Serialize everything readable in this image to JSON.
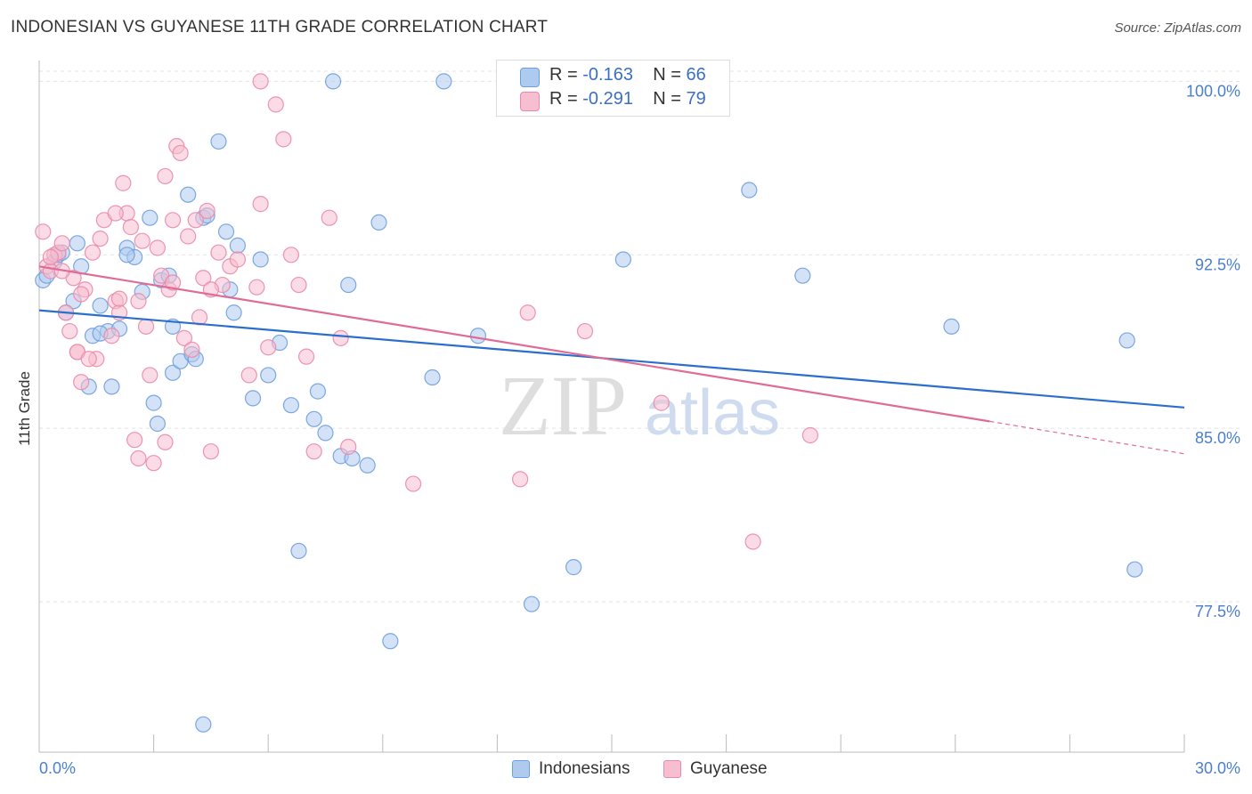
{
  "title": "INDONESIAN VS GUYANESE 11TH GRADE CORRELATION CHART",
  "source": "Source: ZipAtlas.com",
  "watermark": {
    "zip": "ZIP",
    "atlas": "atlas"
  },
  "legend_top": [
    {
      "r_label": "R =",
      "r_value": "-0.163",
      "n_label": "N =",
      "n_value": "66"
    },
    {
      "r_label": "R =",
      "r_value": "-0.291",
      "n_label": "N =",
      "n_value": "79"
    }
  ],
  "legend_bottom": [
    "Indonesians",
    "Guyanese"
  ],
  "colors": {
    "blue_fill": "#aecbef",
    "blue_stroke": "#6f9ede",
    "blue_line": "#2b6fcb",
    "pink_fill": "#f7bdd0",
    "pink_stroke": "#ea89a9",
    "pink_line": "#e06c96",
    "tick_label": "#4a7fd0",
    "grid": "#e3e3e3"
  },
  "chart_data": {
    "type": "scatter",
    "xlabel": "",
    "ylabel": "11th Grade",
    "xlim": [
      0.0,
      30.0
    ],
    "ylim": [
      71.0,
      100.9
    ],
    "x_tick_labels": [
      {
        "value": 0.0,
        "label": "0.0%"
      },
      {
        "value": 30.0,
        "label": "30.0%"
      }
    ],
    "y_tick_labels": [
      {
        "value": 100.0,
        "label": "100.0%"
      },
      {
        "value": 92.5,
        "label": "92.5%"
      },
      {
        "value": 85.0,
        "label": "85.0%"
      },
      {
        "value": 77.5,
        "label": "77.5%"
      }
    ],
    "x_minor_ticks": [
      0,
      3,
      6,
      9,
      12,
      15,
      18,
      21,
      24,
      27,
      30
    ],
    "grid": true,
    "series": [
      {
        "name": "Indonesians",
        "color": "#aecbef",
        "trend": {
          "x": [
            0.0,
            30.0
          ],
          "y": [
            90.1,
            85.9
          ]
        },
        "points": [
          [
            0.1,
            91.4
          ],
          [
            0.2,
            91.6
          ],
          [
            0.4,
            92.2
          ],
          [
            0.5,
            92.5
          ],
          [
            0.6,
            92.6
          ],
          [
            0.9,
            90.5
          ],
          [
            1.0,
            93.0
          ],
          [
            1.1,
            92.0
          ],
          [
            1.3,
            86.8
          ],
          [
            1.4,
            89.0
          ],
          [
            1.6,
            90.3
          ],
          [
            1.8,
            89.2
          ],
          [
            1.9,
            86.8
          ],
          [
            2.1,
            89.3
          ],
          [
            2.3,
            92.8
          ],
          [
            2.5,
            92.4
          ],
          [
            2.7,
            90.9
          ],
          [
            2.9,
            94.1
          ],
          [
            3.0,
            86.1
          ],
          [
            3.1,
            85.2
          ],
          [
            3.2,
            91.4
          ],
          [
            3.4,
            91.6
          ],
          [
            3.5,
            87.4
          ],
          [
            3.7,
            87.9
          ],
          [
            3.9,
            95.1
          ],
          [
            4.0,
            88.2
          ],
          [
            4.1,
            88.0
          ],
          [
            4.3,
            94.1
          ],
          [
            4.4,
            94.2
          ],
          [
            4.7,
            97.4
          ],
          [
            4.9,
            93.5
          ],
          [
            5.0,
            91.0
          ],
          [
            5.1,
            90.0
          ],
          [
            5.6,
            86.3
          ],
          [
            5.8,
            92.3
          ],
          [
            6.0,
            87.3
          ],
          [
            6.3,
            88.7
          ],
          [
            6.6,
            86.0
          ],
          [
            6.8,
            79.7
          ],
          [
            7.2,
            85.4
          ],
          [
            7.3,
            86.6
          ],
          [
            7.5,
            84.8
          ],
          [
            7.7,
            100.0
          ],
          [
            7.9,
            83.8
          ],
          [
            8.1,
            91.2
          ],
          [
            8.6,
            83.4
          ],
          [
            8.9,
            93.9
          ],
          [
            9.2,
            75.8
          ],
          [
            10.3,
            87.2
          ],
          [
            10.6,
            100.0
          ],
          [
            11.5,
            89.0
          ],
          [
            12.9,
            77.4
          ],
          [
            14.0,
            79.0
          ],
          [
            15.3,
            92.3
          ],
          [
            18.6,
            95.3
          ],
          [
            20.0,
            91.6
          ],
          [
            23.9,
            89.4
          ],
          [
            28.5,
            88.8
          ],
          [
            28.7,
            78.9
          ],
          [
            4.3,
            72.2
          ],
          [
            5.2,
            92.9
          ],
          [
            2.3,
            92.5
          ],
          [
            1.6,
            89.1
          ],
          [
            0.7,
            90.0
          ],
          [
            3.5,
            89.4
          ],
          [
            8.2,
            83.7
          ]
        ]
      },
      {
        "name": "Guyanese",
        "color": "#f7bdd0",
        "trend": {
          "x": [
            0.0,
            24.9
          ],
          "y": [
            92.0,
            85.3
          ]
        },
        "trend_dashed": {
          "x": [
            24.9,
            30.0
          ],
          "y": [
            85.3,
            83.9
          ]
        },
        "points": [
          [
            0.1,
            93.5
          ],
          [
            0.2,
            92.0
          ],
          [
            0.3,
            91.8
          ],
          [
            0.4,
            92.5
          ],
          [
            0.5,
            92.6
          ],
          [
            0.6,
            93.0
          ],
          [
            0.7,
            90.0
          ],
          [
            0.8,
            89.2
          ],
          [
            0.9,
            91.5
          ],
          [
            1.0,
            88.3
          ],
          [
            1.1,
            87.0
          ],
          [
            1.2,
            91.0
          ],
          [
            1.4,
            92.6
          ],
          [
            1.5,
            88.0
          ],
          [
            1.6,
            93.2
          ],
          [
            1.7,
            94.0
          ],
          [
            1.9,
            89.0
          ],
          [
            2.0,
            90.5
          ],
          [
            2.1,
            90.0
          ],
          [
            2.2,
            95.6
          ],
          [
            2.3,
            94.3
          ],
          [
            2.4,
            93.7
          ],
          [
            2.5,
            84.5
          ],
          [
            2.6,
            83.7
          ],
          [
            2.7,
            93.1
          ],
          [
            2.8,
            89.4
          ],
          [
            2.9,
            87.3
          ],
          [
            3.0,
            83.5
          ],
          [
            3.1,
            92.8
          ],
          [
            3.2,
            91.6
          ],
          [
            3.3,
            95.9
          ],
          [
            3.4,
            91.0
          ],
          [
            3.5,
            91.3
          ],
          [
            3.6,
            97.2
          ],
          [
            3.7,
            96.9
          ],
          [
            3.8,
            88.9
          ],
          [
            3.9,
            93.3
          ],
          [
            4.0,
            88.4
          ],
          [
            4.1,
            94.0
          ],
          [
            4.2,
            89.8
          ],
          [
            4.3,
            91.5
          ],
          [
            4.4,
            94.4
          ],
          [
            4.5,
            84.0
          ],
          [
            4.7,
            92.6
          ],
          [
            4.8,
            91.2
          ],
          [
            5.0,
            92.0
          ],
          [
            5.2,
            92.3
          ],
          [
            5.5,
            87.3
          ],
          [
            5.7,
            91.1
          ],
          [
            5.8,
            94.7
          ],
          [
            6.0,
            88.5
          ],
          [
            6.2,
            99.0
          ],
          [
            6.4,
            97.5
          ],
          [
            6.6,
            92.5
          ],
          [
            6.8,
            91.2
          ],
          [
            7.0,
            88.1
          ],
          [
            7.2,
            84.0
          ],
          [
            7.6,
            94.1
          ],
          [
            7.9,
            88.9
          ],
          [
            8.1,
            84.2
          ],
          [
            9.8,
            82.6
          ],
          [
            12.6,
            82.8
          ],
          [
            12.8,
            90.0
          ],
          [
            14.3,
            89.2
          ],
          [
            16.3,
            86.1
          ],
          [
            18.7,
            80.1
          ],
          [
            20.2,
            84.7
          ],
          [
            0.3,
            92.4
          ],
          [
            1.0,
            88.3
          ],
          [
            5.8,
            100.0
          ],
          [
            4.5,
            91.0
          ],
          [
            2.0,
            94.3
          ],
          [
            3.5,
            94.0
          ],
          [
            1.1,
            90.8
          ],
          [
            0.6,
            91.8
          ],
          [
            2.6,
            90.5
          ],
          [
            3.3,
            84.4
          ],
          [
            2.1,
            90.6
          ],
          [
            1.3,
            88.0
          ]
        ]
      }
    ]
  }
}
